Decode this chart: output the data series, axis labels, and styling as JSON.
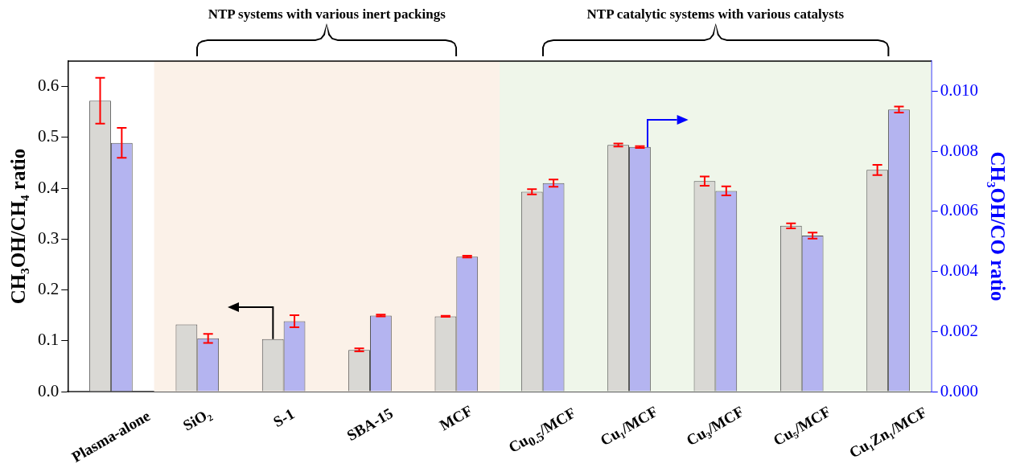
{
  "chart_data": {
    "type": "bar",
    "ylabel": "CH₃OH/CH₄ ratio",
    "y2label": "CH₃OH/CO ratio",
    "categories": [
      "Plasma-alone",
      "SiO₂",
      "S-1",
      "SBA-15",
      "MCF",
      "Cu$_{0.5}$/MCF",
      "Cu₁/MCF",
      "Cu₃/MCF",
      "Cu₅/MCF",
      "Cu₁Zn₁/MCF"
    ],
    "series": [
      {
        "color": "#d9d8d4",
        "values": [
          0.572,
          0.132,
          0.103,
          0.082,
          0.148,
          0.393,
          0.485,
          0.414,
          0.326,
          0.436
        ],
        "errors": [
          0.045,
          null,
          null,
          0.003,
          0.001,
          0.005,
          0.003,
          0.009,
          0.005,
          0.01
        ]
      },
      {
        "color": "#b4b4f0",
        "axis": "y2",
        "values": [
          0.00828,
          0.00177,
          0.00234,
          0.00253,
          0.00449,
          0.00694,
          0.00814,
          0.00668,
          0.00519,
          0.00939
        ],
        "errors": [
          0.0005,
          0.00015,
          0.0002,
          3e-05,
          3e-05,
          0.00012,
          3e-05,
          0.00015,
          0.0001,
          0.0001
        ]
      }
    ],
    "ylim": [
      0,
      0.65
    ],
    "yticks": [
      {
        "value": 0,
        "label": "0.0"
      },
      0.1,
      0.2,
      0.3,
      0.4,
      0.5,
      0.6
    ],
    "y2lim": [
      0,
      0.011
    ],
    "y2ticks": [
      {
        "value": 0,
        "label": "0.000"
      },
      {
        "value": 0.002,
        "label": "0.002"
      },
      {
        "value": 0.004,
        "label": "0.004"
      },
      {
        "value": 0.006,
        "label": "0.006"
      },
      {
        "value": 0.008,
        "label": "0.008"
      },
      {
        "value": 0.01,
        "label": "0.010"
      }
    ],
    "bands": [
      {
        "axis": "x",
        "from": "SiO₂",
        "to": "MCF",
        "color": "#fbf1e8"
      },
      {
        "axis": "x",
        "from": "Cu$_{0.5}$/MCF",
        "to": "Cu₁Zn₁/MCF",
        "color": "#eff6ea"
      }
    ],
    "annotations": [
      "NTP systems with various inert packings",
      "NTP catalytic systems with various catalysts"
    ],
    "grid": false,
    "legend": false
  }
}
